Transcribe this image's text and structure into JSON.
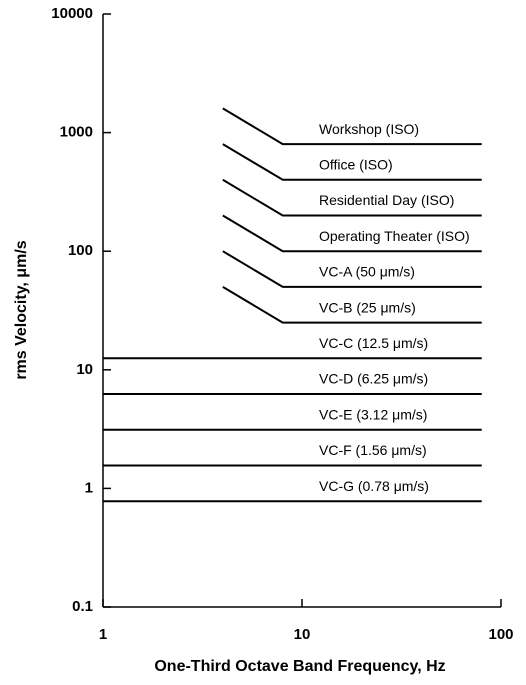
{
  "chart_data": {
    "type": "line",
    "x_label": "One-Third Octave Band Frequency, Hz",
    "y_label": "rms Velocity, μm/s",
    "xscale": "log",
    "yscale": "log",
    "xlim": [
      1,
      100
    ],
    "ylim": [
      0.1,
      10000
    ],
    "xticks": [
      1,
      10,
      100
    ],
    "yticks": [
      0.1,
      1,
      10,
      100,
      1000,
      10000
    ],
    "color": "#000000",
    "series": [
      {
        "name": "Workshop (ISO)",
        "x": [
          4,
          8,
          80
        ],
        "values": [
          1600,
          800,
          800
        ]
      },
      {
        "name": "Office (ISO)",
        "x": [
          4,
          8,
          80
        ],
        "values": [
          800,
          400,
          400
        ]
      },
      {
        "name": "Residential Day (ISO)",
        "x": [
          4,
          8,
          80
        ],
        "values": [
          400,
          200,
          200
        ]
      },
      {
        "name": "Operating Theater (ISO)",
        "x": [
          4,
          8,
          80
        ],
        "values": [
          200,
          100,
          100
        ]
      },
      {
        "name": "VC-A (50 μm/s)",
        "x": [
          4,
          8,
          80
        ],
        "values": [
          100,
          50,
          50
        ]
      },
      {
        "name": "VC-B (25 μm/s)",
        "x": [
          4,
          8,
          80
        ],
        "values": [
          50,
          25,
          25
        ]
      },
      {
        "name": "VC-C (12.5 μm/s)",
        "x": [
          1,
          80
        ],
        "values": [
          12.5,
          12.5
        ]
      },
      {
        "name": "VC-D (6.25 μm/s)",
        "x": [
          1,
          80
        ],
        "values": [
          6.25,
          6.25
        ]
      },
      {
        "name": "VC-E (3.12 μm/s)",
        "x": [
          1,
          80
        ],
        "values": [
          3.12,
          3.12
        ]
      },
      {
        "name": "VC-F (1.56 μm/s)",
        "x": [
          1,
          80
        ],
        "values": [
          1.56,
          1.56
        ]
      },
      {
        "name": "VC-G (0.78 μm/s)",
        "x": [
          1,
          80
        ],
        "values": [
          0.78,
          0.78
        ]
      }
    ]
  }
}
